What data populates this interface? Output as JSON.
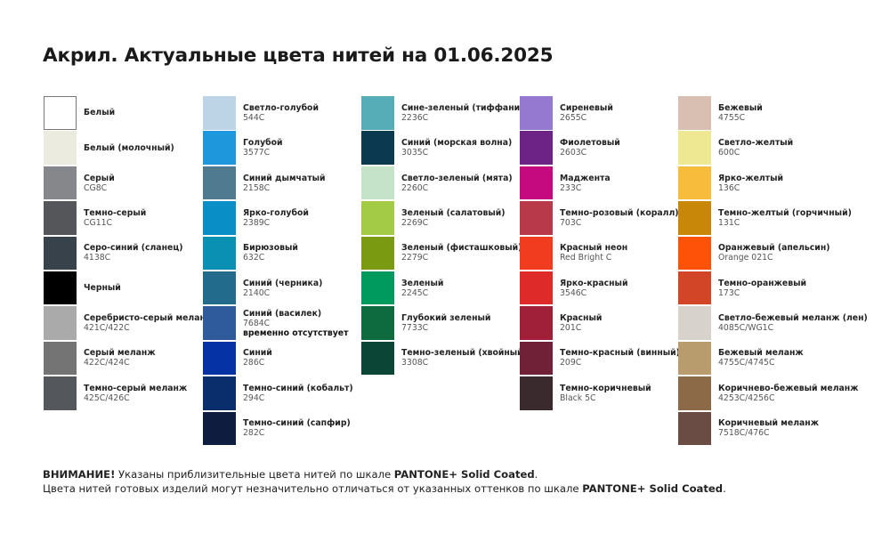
{
  "title": "Акрил. Актуальные цвета нитей на 01.06.2025",
  "columns": [
    [
      {
        "name": "Белый",
        "code": "",
        "color": "#ffffff"
      },
      {
        "name": "Белый (молочный)",
        "code": "",
        "color": "#ebebe0"
      },
      {
        "name": "Серый",
        "code": "CG8C",
        "color": "#86878b"
      },
      {
        "name": "Темно-серый",
        "code": "CG11C",
        "color": "#55565a"
      },
      {
        "name": "Серо-синий (сланец)",
        "code": "4138C",
        "color": "#37424b"
      },
      {
        "name": "Черный",
        "code": "",
        "color": "#000000"
      },
      {
        "name": "Серебристо-серый меланж",
        "code": "421C/422C",
        "color": "#a9aaa9"
      },
      {
        "name": "Серый меланж",
        "code": "422C/424C",
        "color": "#737473"
      },
      {
        "name": "Темно-серый меланж",
        "code": "425C/426C",
        "color": "#54585c"
      }
    ],
    [
      {
        "name": "Светло-голубой",
        "code": "544C",
        "color": "#bcd4e6"
      },
      {
        "name": "Голубой",
        "code": "3577C",
        "color": "#1f97dc"
      },
      {
        "name": "Синий дымчатый",
        "code": "2158C",
        "color": "#4f7a8f"
      },
      {
        "name": "Ярко-голубой",
        "code": "2389C",
        "color": "#0a8ec6"
      },
      {
        "name": "Бирюзовый",
        "code": "632C",
        "color": "#0a90b2"
      },
      {
        "name": "Синий (черника)",
        "code": "2140C",
        "color": "#236b8c"
      },
      {
        "name": "Синий (василек)",
        "code": "7684C",
        "note": "временно отсутствует",
        "color": "#2f5b9c"
      },
      {
        "name": "Синий",
        "code": "286C",
        "color": "#0532a4"
      },
      {
        "name": "Темно-синий (кобальт)",
        "code": "294C",
        "color": "#0a2e6c"
      },
      {
        "name": "Темно-синий (сапфир)",
        "code": "282C",
        "color": "#0e1c3f"
      }
    ],
    [
      {
        "name": "Сине-зеленый (тиффани)",
        "code": "2236C",
        "color": "#56adb8"
      },
      {
        "name": "Синий (морская волна)",
        "code": "3035C",
        "color": "#0b3a50"
      },
      {
        "name": "Светло-зеленый (мята)",
        "code": "2260C",
        "color": "#c5e3c8"
      },
      {
        "name": "Зеленый (салатовый)",
        "code": "2269C",
        "color": "#a3cb45"
      },
      {
        "name": "Зеленый (фисташковый)",
        "code": "2279C",
        "color": "#7a9a12"
      },
      {
        "name": "Зеленый",
        "code": "2245C",
        "color": "#019a5e"
      },
      {
        "name": "Глубокий зеленый",
        "code": "7733C",
        "color": "#0e6b40"
      },
      {
        "name": "Темно-зеленый (хвойный)",
        "code": "3308C",
        "color": "#0a4536"
      }
    ],
    [
      {
        "name": "Сиреневый",
        "code": "2655C",
        "color": "#9579d1"
      },
      {
        "name": "Фиолетовый",
        "code": "2603C",
        "color": "#6d2385"
      },
      {
        "name": "Маджента",
        "code": "233C",
        "color": "#c50a80"
      },
      {
        "name": "Темно-розовый (коралл)",
        "code": "703C",
        "color": "#b83a4a"
      },
      {
        "name": "Красный неон",
        "code": "Red Bright C",
        "color": "#f23c1f"
      },
      {
        "name": "Ярко-красный",
        "code": "3546C",
        "color": "#de2a29"
      },
      {
        "name": "Красный",
        "code": "201C",
        "color": "#a0203a"
      },
      {
        "name": "Темно-красный (винный)",
        "code": "209C",
        "color": "#702037"
      },
      {
        "name": "Темно-коричневый",
        "code": "Black 5C",
        "color": "#3b2a2d"
      }
    ],
    [
      {
        "name": "Бежевый",
        "code": "4755C",
        "color": "#d8bfb2"
      },
      {
        "name": "Светло-желтый",
        "code": "600C",
        "color": "#efe893"
      },
      {
        "name": "Ярко-желтый",
        "code": "136C",
        "color": "#f8bc3c"
      },
      {
        "name": "Темно-желтый (горчичный)",
        "code": "131C",
        "color": "#c9870a"
      },
      {
        "name": "Оранжевый (апельсин)",
        "code": "Orange 021C",
        "color": "#fd5208"
      },
      {
        "name": "Темно-оранжевый",
        "code": "173C",
        "color": "#d24627"
      },
      {
        "name": "Светло-бежевый меланж (лен)",
        "code": "4085C/WG1C",
        "color": "#d7d2cb"
      },
      {
        "name": "Бежевый меланж",
        "code": "4755C/4745C",
        "color": "#b99c6d"
      },
      {
        "name": "Коричнево-бежевый меланж",
        "code": "4253C/4256C",
        "color": "#8c6a48"
      },
      {
        "name": "Коричневый меланж",
        "code": "7518C/476C",
        "color": "#6a4c45"
      }
    ]
  ],
  "footer": {
    "line1_bold": "ВНИМАНИЕ!",
    "line1_text": " Указаны приблизительные цвета нитей по шкале ",
    "line1_scale": "PANTONE+ Solid Coated",
    "line1_end": ".",
    "line2_text": "Цвета нитей готовых изделий могут незначительно отличаться от указанных оттенков по шкале ",
    "line2_scale": "PANTONE+ Solid Coated",
    "line2_end": "."
  }
}
